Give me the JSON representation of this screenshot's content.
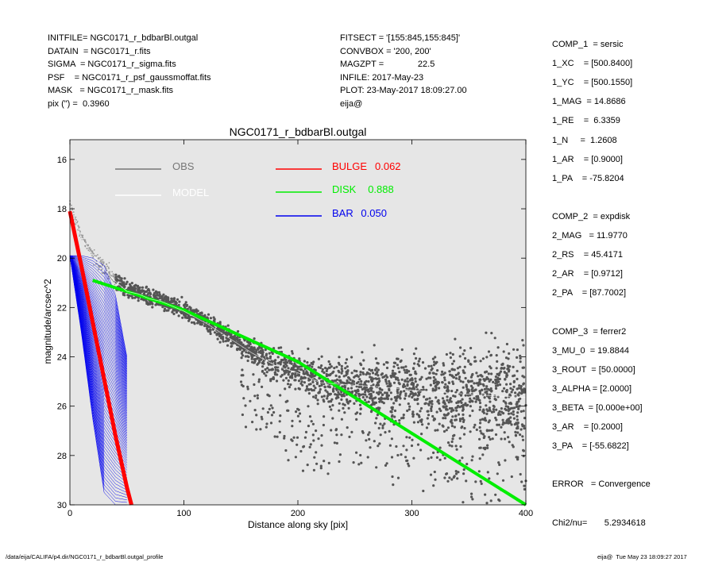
{
  "header_left": [
    "INITFILE= NGC0171_r_bdbarBl.outgal",
    "DATAIN  = NGC0171_r.fits",
    "SIGMA  = NGC0171_r_sigma.fits",
    "PSF    = NGC0171_r_psf_gaussmoffat.fits",
    "MASK   = NGC0171_r_mask.fits",
    "pix (\") =  0.3960"
  ],
  "header_mid": [
    "FITSECT = '[155:845,155:845]'",
    "CONVBOX = '200, 200'",
    "MAGZPT =              22.5",
    "INFILE: 2017-May-23",
    "PLOT: 23-May-2017 18:09:27.00",
    "eija@"
  ],
  "params": [
    "COMP_1  = sersic",
    "1_XC    = [500.8400]",
    "1_YC    = [500.1550]",
    "1_MAG  = 14.8686",
    "1_RE    =  6.3359",
    "1_N     =  1.2608",
    "1_AR    = [0.9000]",
    "1_PA    = -75.8204",
    "",
    "COMP_2  = expdisk",
    "2_MAG   = 11.9770",
    "2_RS    = 45.4171",
    "2_AR    = [0.9712]",
    "2_PA    = [87.7002]",
    "",
    "COMP_3  = ferrer2",
    "3_MU_0  = 19.8844",
    "3_ROUT  = [50.0000]",
    "3_ALPHA = [2.0000]",
    "3_BETA  = [0.000e+00]",
    "3_AR    = [0.2000]",
    "3_PA    = [-55.6822]",
    "",
    "ERROR   = Convergence",
    "",
    "Chi2/nu=       5.2934618"
  ],
  "footer_left": "/data/eija/CALIFA/p4.dir/NGC0171_r_bdbarBl.outgal_profile",
  "footer_right": "eija@  Tue May 23 18:09:27 2017",
  "colors": {
    "background": "#e6e6e6",
    "obs": "#555555",
    "model": "#ffffff",
    "bulge": "#ff0000",
    "disk": "#00ee00",
    "bar": "#0000ee"
  },
  "chart_data": {
    "type": "scatter",
    "title": "NGC0171_r_bdbarBl.outgal",
    "xlabel": "Distance along sky [pix]",
    "ylabel": "magnitude/arcsec^2",
    "xlim": [
      0,
      400
    ],
    "ylim": [
      30,
      15.2
    ],
    "y_inverted": true,
    "xticks": [
      0,
      100,
      200,
      300,
      400
    ],
    "yticks": [
      16,
      18,
      20,
      22,
      24,
      26,
      28,
      30
    ],
    "legend": [
      {
        "name": "OBS",
        "color": "#777777",
        "value": ""
      },
      {
        "name": "MODEL",
        "color": "#ffffff",
        "value": ""
      },
      {
        "name": "BULGE",
        "color": "#ff0000",
        "value": "0.062"
      },
      {
        "name": "DISK",
        "color": "#00ee00",
        "value": "0.888"
      },
      {
        "name": "BAR",
        "color": "#0000ee",
        "value": "0.050"
      }
    ],
    "series": [
      {
        "name": "OBS",
        "kind": "scatter",
        "x": [
          0,
          5,
          10,
          15,
          20,
          25,
          30,
          40,
          50,
          60,
          70,
          80,
          100,
          120,
          140,
          160,
          180,
          200,
          220,
          250,
          280,
          300,
          330,
          360,
          400
        ],
        "y": [
          17.8,
          18.5,
          19.1,
          19.5,
          19.8,
          20.1,
          20.4,
          20.9,
          21.3,
          21.4,
          21.6,
          21.7,
          22.1,
          22.6,
          23.2,
          23.8,
          24.3,
          24.6,
          25.0,
          25.1,
          25.2,
          25.3,
          25.4,
          25.5,
          25.6
        ]
      },
      {
        "name": "DISK",
        "kind": "line",
        "x": [
          20,
          100,
          200,
          300,
          400
        ],
        "y": [
          20.9,
          22.1,
          24.2,
          27.1,
          30.0
        ]
      },
      {
        "name": "BULGE",
        "kind": "line",
        "x": [
          0,
          10,
          20,
          30,
          40,
          50,
          54
        ],
        "y": [
          18.1,
          20.3,
          22.6,
          24.9,
          27.2,
          29.3,
          30.0
        ]
      },
      {
        "name": "BAR",
        "kind": "band",
        "x": [
          0,
          10,
          20,
          30,
          40,
          50
        ],
        "y_top": [
          19.9,
          19.9,
          20.0,
          20.3,
          21.5,
          24.0
        ],
        "y_bottom": [
          19.9,
          23.0,
          26.5,
          29.5,
          30.0,
          30.0
        ]
      }
    ]
  }
}
